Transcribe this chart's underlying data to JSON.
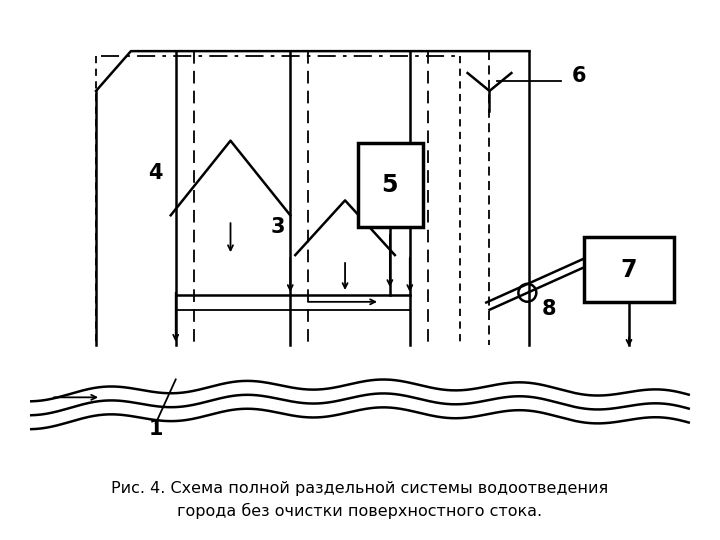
{
  "bg_color": "#ffffff",
  "fg_color": "#000000",
  "caption_line1": "Рис. 4. Схема полной раздельной системы водоотведения",
  "caption_line2": "города без очистки поверхностного стока.",
  "caption_fontsize": 11.5,
  "label_fontsize": 15
}
